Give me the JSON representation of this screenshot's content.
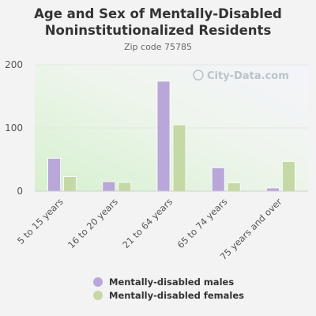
{
  "chart_data": {
    "type": "bar",
    "title": "Age and Sex of Mentally-Disabled Noninstitutionalized Residents",
    "subtitle": "Zip code 75785",
    "watermark": "City-Data.com",
    "categories": [
      "5 to 15 years",
      "16 to 20 years",
      "21 to 64 years",
      "65 to 74 years",
      "75 years and over"
    ],
    "series": [
      {
        "name": "Mentally-disabled males",
        "color": "#b9a7d9",
        "values": [
          52,
          15,
          174,
          37,
          5
        ]
      },
      {
        "name": "Mentally-disabled females",
        "color": "#c5d9a6",
        "values": [
          23,
          14,
          105,
          13,
          47
        ]
      }
    ],
    "ylim": [
      0,
      200
    ],
    "yticks": [
      0,
      100,
      200
    ],
    "grid": true,
    "legend_position": "bottom"
  }
}
